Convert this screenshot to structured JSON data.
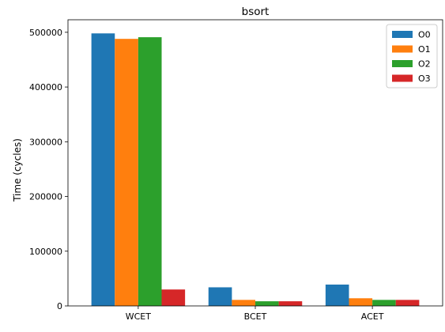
{
  "chart_data": {
    "type": "bar",
    "title": "bsort",
    "xlabel": "",
    "ylabel": "Time (cycles)",
    "categories": [
      "WCET",
      "BCET",
      "ACET"
    ],
    "series": [
      {
        "name": "O0",
        "color": "#1f77b4",
        "values": [
          498000,
          34000,
          39000
        ]
      },
      {
        "name": "O1",
        "color": "#ff7f0e",
        "values": [
          488000,
          11000,
          14000
        ]
      },
      {
        "name": "O2",
        "color": "#2ca02c",
        "values": [
          491000,
          8500,
          11000
        ]
      },
      {
        "name": "O3",
        "color": "#d62728",
        "values": [
          30000,
          8500,
          11000
        ]
      }
    ],
    "ylim": [
      0,
      522900
    ],
    "yticks": [
      0,
      100000,
      200000,
      300000,
      400000,
      500000
    ],
    "ytick_labels": [
      "0",
      "100000",
      "200000",
      "300000",
      "400000",
      "500000"
    ],
    "legend": "top-right",
    "grid": false
  }
}
